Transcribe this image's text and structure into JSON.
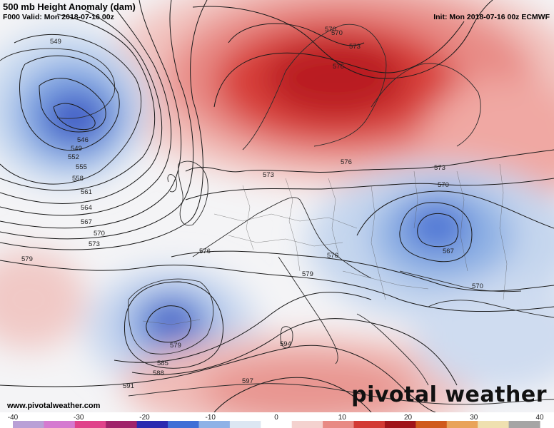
{
  "header": {
    "title": "500 mb Height Anomaly (dam)",
    "valid": "F000 Valid: Mon 2018-07-16 00z",
    "init": "Init: Mon 2018-07-16 00z ECMWF"
  },
  "footer": {
    "url": "www.pivotalweather.com",
    "brand": "pivotal weather"
  },
  "contour_labels": [
    "549",
    "546",
    "549",
    "552",
    "555",
    "558",
    "561",
    "564",
    "567",
    "570",
    "573",
    "579",
    "570",
    "573",
    "576",
    "576",
    "573",
    "570",
    "573",
    "570",
    "567",
    "570",
    "576",
    "576",
    "579",
    "579",
    "585",
    "588",
    "591",
    "594",
    "597"
  ],
  "colorbar": {
    "ticks": [
      "-40",
      "-30",
      "-20",
      "-10",
      "0",
      "10",
      "20",
      "30",
      "40"
    ],
    "colors": [
      "#b9a0d6",
      "#d57ad0",
      "#e0428a",
      "#a0236a",
      "#2b2ab0",
      "#3f6fd6",
      "#8fb2e6",
      "#dce6f2",
      "#ffffff",
      "#f4d2cf",
      "#e88a84",
      "#d33a34",
      "#a0141a",
      "#d05a1c",
      "#e9a35a",
      "#efe0b0",
      "#a5a5a5"
    ]
  }
}
